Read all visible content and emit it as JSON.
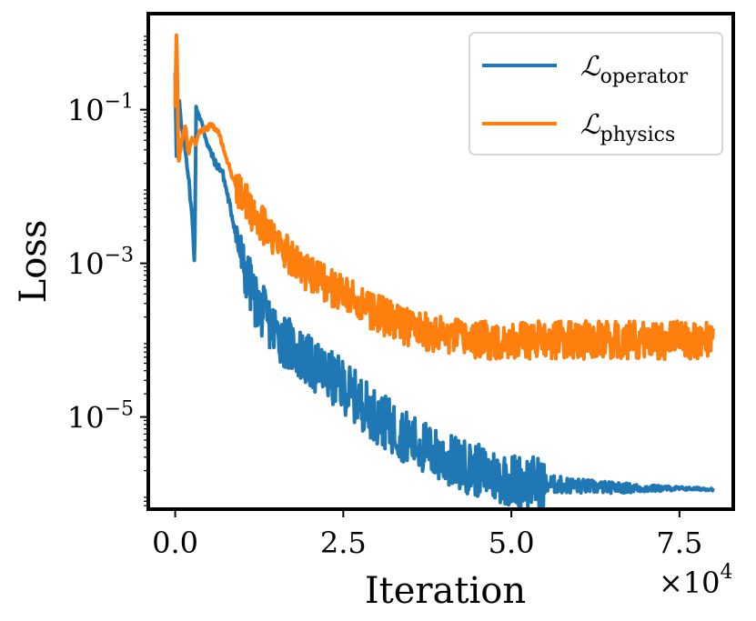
{
  "chart_data": {
    "type": "line",
    "title": "",
    "xlabel": "Iteration",
    "ylabel": "Loss",
    "x_multiplier_label": "×10",
    "x_multiplier_exponent": "4",
    "xlim": [
      -0.4,
      8.3
    ],
    "ylim_log10": [
      -6.2,
      0.25
    ],
    "yscale": "log",
    "x_ticks": [
      {
        "value": 0.0,
        "label": "0.0"
      },
      {
        "value": 2.5,
        "label": "2.5"
      },
      {
        "value": 5.0,
        "label": "5.0"
      },
      {
        "value": 7.5,
        "label": "7.5"
      }
    ],
    "y_ticks": [
      {
        "exp": -1,
        "base": "10",
        "sup": "−1"
      },
      {
        "exp": -3,
        "base": "10",
        "sup": "−3"
      },
      {
        "exp": -5,
        "base": "10",
        "sup": "−5"
      }
    ],
    "legend_position": "upper-right",
    "series": [
      {
        "name": "L_operator",
        "symbol": "ℒ",
        "subscript": "operator",
        "color": "#1f77b4",
        "noise": 0.35,
        "x": [
          0,
          0.02,
          0.06,
          0.1,
          0.15,
          0.2,
          0.25,
          0.29,
          0.31,
          0.35,
          0.4,
          0.5,
          0.6,
          0.7,
          0.8,
          0.9,
          1.0,
          1.2,
          1.5,
          2.0,
          2.5,
          3.0,
          3.5,
          4.0,
          4.5,
          5.0,
          5.5,
          6.0,
          6.5,
          7.0,
          7.5,
          8.0
        ],
        "log10_y": [
          -0.5,
          -1.7,
          -0.9,
          -1.3,
          -1.5,
          -1.9,
          -2.4,
          -3.0,
          -1.0,
          -1.05,
          -1.2,
          -1.5,
          -1.7,
          -1.8,
          -2.2,
          -2.6,
          -3.0,
          -3.5,
          -3.9,
          -4.3,
          -4.6,
          -5.0,
          -5.3,
          -5.55,
          -5.7,
          -5.82,
          -5.87,
          -5.9,
          -5.92,
          -5.93,
          -5.93,
          -5.94
        ]
      },
      {
        "name": "L_physics",
        "symbol": "ℒ",
        "subscript": "physics",
        "color": "#ff7f0e",
        "noise": 0.25,
        "x": [
          0,
          0.02,
          0.05,
          0.1,
          0.15,
          0.2,
          0.25,
          0.3,
          0.35,
          0.45,
          0.55,
          0.65,
          0.75,
          0.9,
          1.2,
          1.6,
          2.0,
          2.5,
          3.0,
          3.5,
          4.0,
          4.5,
          5.0,
          5.5,
          6.0,
          6.5,
          7.0,
          7.5,
          8.0
        ],
        "log10_y": [
          -0.95,
          0.1,
          -1.7,
          -1.4,
          -1.2,
          -1.6,
          -1.35,
          -1.45,
          -1.3,
          -1.25,
          -1.2,
          -1.3,
          -1.6,
          -2.0,
          -2.4,
          -2.8,
          -3.15,
          -3.4,
          -3.65,
          -3.85,
          -3.95,
          -4.0,
          -4.0,
          -4.0,
          -4.0,
          -4.0,
          -4.0,
          -4.0,
          -4.0
        ]
      }
    ]
  }
}
